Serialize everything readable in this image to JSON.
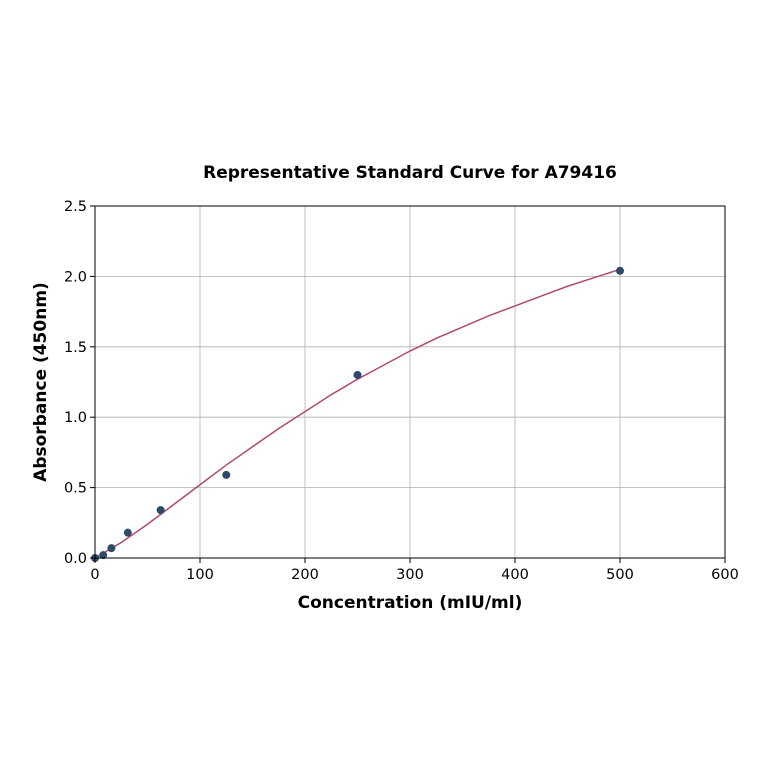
{
  "chart_data": {
    "type": "scatter",
    "title": "Representative Standard Curve for A79416",
    "xlabel": "Concentration (mIU/ml)",
    "ylabel": "Absorbance (450nm)",
    "xlim": [
      0,
      600
    ],
    "ylim": [
      0,
      2.5
    ],
    "xticks": [
      "0",
      "100",
      "200",
      "300",
      "400",
      "500",
      "600"
    ],
    "yticks": [
      "0.0",
      "0.5",
      "1.0",
      "1.5",
      "2.0",
      "2.5"
    ],
    "grid": true,
    "series": [
      {
        "points": [
          {
            "x": 0,
            "y": 0.0
          },
          {
            "x": 7.8,
            "y": 0.02
          },
          {
            "x": 15.6,
            "y": 0.07
          },
          {
            "x": 31.25,
            "y": 0.18
          },
          {
            "x": 62.5,
            "y": 0.34
          },
          {
            "x": 125,
            "y": 0.59
          },
          {
            "x": 250,
            "y": 1.3
          },
          {
            "x": 500,
            "y": 2.04
          }
        ],
        "color": "#2e4a6b"
      }
    ],
    "fit_curve": {
      "x": [
        0,
        25,
        50,
        75,
        100,
        125,
        150,
        175,
        200,
        225,
        250,
        275,
        300,
        325,
        350,
        375,
        400,
        425,
        450,
        475,
        500
      ],
      "y": [
        0.0,
        0.11,
        0.24,
        0.38,
        0.52,
        0.66,
        0.79,
        0.92,
        1.04,
        1.16,
        1.27,
        1.37,
        1.47,
        1.56,
        1.64,
        1.72,
        1.79,
        1.86,
        1.93,
        1.99,
        2.05
      ],
      "color": "#b04a6e"
    }
  }
}
